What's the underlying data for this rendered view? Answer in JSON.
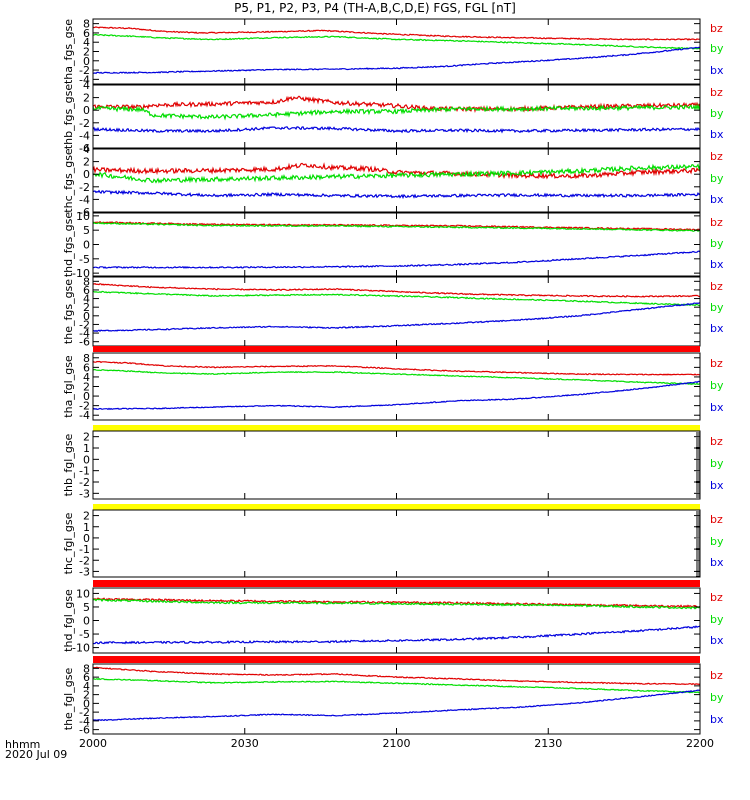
{
  "header": {
    "title": "P5, P1, P2, P3, P4 (TH-A,B,C,D,E) FGS, FGL [nT]"
  },
  "footer": {
    "time_label": "hhmm",
    "date_label": "2020 Jul 09"
  },
  "colors": {
    "bz": "#e00000",
    "by": "#00dd00",
    "bx": "#0000dd",
    "bar_red": "#ff0000",
    "bar_yellow": "#ffff00"
  },
  "x_axis": {
    "min": 2000,
    "max": 2200,
    "ticks": [
      "2000",
      "2030",
      "2100",
      "2130",
      "2200"
    ]
  },
  "chart_data": [
    {
      "type": "line",
      "ylabel": "tha_fgs_gse",
      "ylim": [
        -5,
        9
      ],
      "yticks": [
        "-4",
        "-2",
        "0",
        "2",
        "4",
        "6",
        "8"
      ],
      "status_bar": "",
      "legend": [
        "bz",
        "by",
        "bx"
      ],
      "series": [
        {
          "name": "bz",
          "noise": 0.12,
          "x": [
            0,
            0.06,
            0.12,
            0.18,
            0.28,
            0.38,
            0.48,
            0.58,
            0.68,
            0.78,
            0.88,
            1
          ],
          "y": [
            7.2,
            7.0,
            6.3,
            6.0,
            6.2,
            6.5,
            5.8,
            5.3,
            5.0,
            4.8,
            4.6,
            4.6
          ]
        },
        {
          "name": "by",
          "noise": 0.12,
          "x": [
            0,
            0.06,
            0.12,
            0.2,
            0.3,
            0.4,
            0.5,
            0.6,
            0.7,
            0.8,
            0.9,
            1
          ],
          "y": [
            5.6,
            5.3,
            4.9,
            4.6,
            5.0,
            5.2,
            4.6,
            4.3,
            3.9,
            3.5,
            3.0,
            2.6
          ]
        },
        {
          "name": "bx",
          "noise": 0.12,
          "x": [
            0,
            0.1,
            0.2,
            0.3,
            0.4,
            0.5,
            0.58,
            0.65,
            0.72,
            0.8,
            0.88,
            0.95,
            1
          ],
          "y": [
            -2.6,
            -2.5,
            -2.2,
            -1.9,
            -1.8,
            -1.6,
            -1.2,
            -0.6,
            -0.1,
            0.5,
            1.3,
            2.2,
            2.9
          ]
        }
      ]
    },
    {
      "type": "line",
      "ylabel": "thb_fgs_gse",
      "ylim": [
        -6,
        4
      ],
      "yticks": [
        "-6",
        "-4",
        "-2",
        "0",
        "2",
        "4"
      ],
      "status_bar": "",
      "legend": [
        "bz",
        "by",
        "bx"
      ],
      "series": [
        {
          "name": "bz",
          "noise": 0.45,
          "x": [
            0,
            0.08,
            0.1,
            0.2,
            0.3,
            0.33,
            0.4,
            0.5,
            0.55,
            0.6,
            0.7,
            0.8,
            0.9,
            1
          ],
          "y": [
            0.6,
            0.5,
            0.8,
            1.0,
            1.3,
            2.0,
            1.2,
            0.7,
            0.3,
            0.2,
            0.2,
            0.5,
            0.7,
            0.8
          ]
        },
        {
          "name": "by",
          "noise": 0.45,
          "x": [
            0,
            0.08,
            0.1,
            0.2,
            0.3,
            0.4,
            0.5,
            0.55,
            0.6,
            0.7,
            0.8,
            0.9,
            1
          ],
          "y": [
            0.3,
            0.1,
            -0.8,
            -1.1,
            -0.7,
            -0.2,
            -0.2,
            0.0,
            0.2,
            0.2,
            0.3,
            0.4,
            0.5
          ]
        },
        {
          "name": "bx",
          "noise": 0.3,
          "x": [
            0,
            0.1,
            0.2,
            0.3,
            0.4,
            0.5,
            0.6,
            0.7,
            0.8,
            0.9,
            1
          ],
          "y": [
            -3.0,
            -3.3,
            -3.3,
            -2.8,
            -2.9,
            -3.3,
            -3.2,
            -3.3,
            -3.2,
            -3.1,
            -3.0
          ]
        }
      ]
    },
    {
      "type": "line",
      "ylabel": "thc_fgs_gse",
      "ylim": [
        -6,
        4
      ],
      "yticks": [
        "-6",
        "-4",
        "-2",
        "0",
        "2",
        "4"
      ],
      "status_bar": "",
      "legend": [
        "bz",
        "by",
        "bx"
      ],
      "series": [
        {
          "name": "bz",
          "noise": 0.5,
          "x": [
            0,
            0.1,
            0.2,
            0.3,
            0.35,
            0.4,
            0.45,
            0.5,
            0.6,
            0.7,
            0.8,
            0.9,
            1
          ],
          "y": [
            0.7,
            0.5,
            0.6,
            0.8,
            1.5,
            1.0,
            0.9,
            0.3,
            0.1,
            -0.2,
            -0.3,
            0.3,
            0.6
          ]
        },
        {
          "name": "by",
          "noise": 0.5,
          "x": [
            0,
            0.05,
            0.1,
            0.2,
            0.3,
            0.4,
            0.5,
            0.6,
            0.7,
            0.8,
            0.9,
            1
          ],
          "y": [
            0.1,
            -0.5,
            -1.0,
            -0.8,
            -0.6,
            -0.4,
            -0.2,
            0.0,
            0.2,
            0.5,
            1.0,
            1.2
          ]
        },
        {
          "name": "bx",
          "noise": 0.3,
          "x": [
            0,
            0.1,
            0.2,
            0.3,
            0.4,
            0.5,
            0.6,
            0.7,
            0.8,
            0.9,
            1
          ],
          "y": [
            -2.8,
            -3.0,
            -3.4,
            -3.2,
            -3.4,
            -3.5,
            -3.4,
            -3.3,
            -3.4,
            -3.4,
            -3.2
          ]
        }
      ]
    },
    {
      "type": "line",
      "ylabel": "thd_fgs_gse",
      "ylim": [
        -11,
        11
      ],
      "yticks": [
        "-10",
        "-5",
        "0",
        "5",
        "10"
      ],
      "status_bar": "",
      "legend": [
        "bz",
        "by",
        "bx"
      ],
      "series": [
        {
          "name": "bz",
          "noise": 0.15,
          "x": [
            0,
            0.2,
            0.4,
            0.6,
            0.8,
            1
          ],
          "y": [
            7.8,
            7.0,
            6.8,
            6.5,
            5.8,
            5.2
          ]
        },
        {
          "name": "by",
          "noise": 0.15,
          "x": [
            0,
            0.2,
            0.4,
            0.6,
            0.8,
            1
          ],
          "y": [
            7.5,
            6.6,
            6.5,
            6.0,
            5.5,
            4.8
          ]
        },
        {
          "name": "bx",
          "noise": 0.15,
          "x": [
            0,
            0.2,
            0.4,
            0.5,
            0.6,
            0.7,
            0.8,
            0.9,
            1
          ],
          "y": [
            -8.0,
            -8.0,
            -7.8,
            -7.5,
            -7.0,
            -6.2,
            -5.0,
            -3.8,
            -2.5
          ]
        }
      ]
    },
    {
      "type": "line",
      "ylabel": "the_fgs_gse",
      "ylim": [
        -7,
        9
      ],
      "yticks": [
        "-6",
        "-4",
        "-2",
        "0",
        "2",
        "4",
        "6",
        "8"
      ],
      "status_bar": "red",
      "legend": [
        "bz",
        "by",
        "bx"
      ],
      "series": [
        {
          "name": "bz",
          "noise": 0.12,
          "x": [
            0,
            0.1,
            0.2,
            0.3,
            0.4,
            0.5,
            0.6,
            0.7,
            0.8,
            0.9,
            1
          ],
          "y": [
            7.4,
            6.6,
            6.2,
            6.0,
            6.2,
            5.6,
            5.1,
            4.8,
            4.6,
            4.5,
            4.6
          ]
        },
        {
          "name": "by",
          "noise": 0.12,
          "x": [
            0,
            0.1,
            0.2,
            0.3,
            0.4,
            0.5,
            0.6,
            0.7,
            0.8,
            0.9,
            1
          ],
          "y": [
            5.6,
            5.1,
            4.6,
            4.8,
            4.9,
            4.6,
            4.2,
            3.8,
            3.4,
            2.9,
            2.5
          ]
        },
        {
          "name": "bx",
          "noise": 0.12,
          "x": [
            0,
            0.1,
            0.2,
            0.3,
            0.4,
            0.5,
            0.6,
            0.7,
            0.8,
            0.9,
            1
          ],
          "y": [
            -3.5,
            -3.2,
            -2.8,
            -2.5,
            -2.8,
            -2.3,
            -1.7,
            -1.0,
            0.0,
            1.5,
            3.0
          ]
        }
      ]
    },
    {
      "type": "line",
      "ylabel": "tha_fgl_gse",
      "ylim": [
        -5,
        9
      ],
      "yticks": [
        "-4",
        "-2",
        "0",
        "2",
        "4",
        "6",
        "8"
      ],
      "status_bar": "yellow",
      "legend": [
        "bz",
        "by",
        "bx"
      ],
      "series": [
        {
          "name": "bz",
          "noise": 0.1,
          "x": [
            0,
            0.06,
            0.12,
            0.2,
            0.3,
            0.4,
            0.5,
            0.6,
            0.7,
            0.8,
            0.9,
            1
          ],
          "y": [
            7.2,
            6.9,
            6.3,
            6.0,
            6.2,
            6.3,
            5.7,
            5.2,
            4.9,
            4.6,
            4.5,
            4.5
          ]
        },
        {
          "name": "by",
          "noise": 0.1,
          "x": [
            0,
            0.06,
            0.12,
            0.2,
            0.3,
            0.4,
            0.5,
            0.6,
            0.7,
            0.8,
            0.9,
            1
          ],
          "y": [
            5.5,
            5.2,
            4.8,
            4.6,
            5.0,
            5.0,
            4.6,
            4.2,
            3.8,
            3.4,
            2.9,
            2.5
          ]
        },
        {
          "name": "bx",
          "noise": 0.1,
          "x": [
            0,
            0.1,
            0.2,
            0.3,
            0.4,
            0.5,
            0.6,
            0.7,
            0.8,
            0.9,
            1
          ],
          "y": [
            -2.7,
            -2.6,
            -2.3,
            -2.0,
            -2.3,
            -1.8,
            -1.0,
            -0.6,
            0.3,
            1.5,
            3.0
          ]
        }
      ]
    },
    {
      "type": "line",
      "ylabel": "thb_fgl_gse",
      "ylim": [
        -3.5,
        2.5
      ],
      "yticks": [
        "-3",
        "-2",
        "-1",
        "0",
        "1",
        "2"
      ],
      "status_bar": "yellow",
      "legend": [
        "bz",
        "by",
        "bx"
      ],
      "series": []
    },
    {
      "type": "line",
      "ylabel": "thc_fgl_gse",
      "ylim": [
        -3.5,
        2.5
      ],
      "yticks": [
        "-3",
        "-2",
        "-1",
        "0",
        "1",
        "2"
      ],
      "status_bar": "red",
      "legend": [
        "bz",
        "by",
        "bx"
      ],
      "series": []
    },
    {
      "type": "line",
      "ylabel": "thd_fgl_gse",
      "ylim": [
        -12,
        12
      ],
      "yticks": [
        "-10",
        "-5",
        "0",
        "5",
        "10"
      ],
      "status_bar": "red",
      "legend": [
        "bz",
        "by",
        "bx"
      ],
      "series": [
        {
          "name": "bz",
          "noise": 0.2,
          "x": [
            0,
            0.2,
            0.4,
            0.6,
            0.8,
            1
          ],
          "y": [
            8.0,
            7.3,
            6.9,
            6.5,
            5.8,
            5.2
          ]
        },
        {
          "name": "by",
          "noise": 0.2,
          "x": [
            0,
            0.2,
            0.4,
            0.6,
            0.8,
            1
          ],
          "y": [
            7.6,
            6.6,
            6.4,
            6.0,
            5.5,
            4.6
          ]
        },
        {
          "name": "bx",
          "noise": 0.2,
          "x": [
            0,
            0.2,
            0.4,
            0.5,
            0.6,
            0.7,
            0.8,
            0.9,
            1
          ],
          "y": [
            -8.2,
            -8.0,
            -7.8,
            -7.4,
            -7.0,
            -6.2,
            -5.0,
            -3.8,
            -2.3
          ]
        }
      ]
    },
    {
      "type": "line",
      "ylabel": "the_fgl_gse",
      "ylim": [
        -7,
        9
      ],
      "yticks": [
        "-6",
        "-4",
        "-2",
        "0",
        "2",
        "4",
        "6",
        "8"
      ],
      "status_bar": "",
      "legend": [
        "bz",
        "by",
        "bx"
      ],
      "series": [
        {
          "name": "bz",
          "noise": 0.1,
          "x": [
            0,
            0.1,
            0.2,
            0.3,
            0.4,
            0.5,
            0.6,
            0.7,
            0.8,
            0.9,
            1
          ],
          "y": [
            8.2,
            7.3,
            6.7,
            6.5,
            6.7,
            6.0,
            5.6,
            5.1,
            4.8,
            4.5,
            4.4
          ]
        },
        {
          "name": "by",
          "noise": 0.1,
          "x": [
            0,
            0.1,
            0.2,
            0.3,
            0.4,
            0.5,
            0.6,
            0.7,
            0.8,
            0.9,
            1
          ],
          "y": [
            5.6,
            5.2,
            4.7,
            4.9,
            5.0,
            4.6,
            4.2,
            3.8,
            3.4,
            2.9,
            2.5
          ]
        },
        {
          "name": "bx",
          "noise": 0.1,
          "x": [
            0,
            0.1,
            0.2,
            0.3,
            0.4,
            0.5,
            0.6,
            0.7,
            0.8,
            0.9,
            1
          ],
          "y": [
            -3.9,
            -3.4,
            -3.0,
            -2.5,
            -2.8,
            -2.2,
            -1.5,
            -0.9,
            0.1,
            1.5,
            3.0
          ]
        }
      ]
    }
  ]
}
